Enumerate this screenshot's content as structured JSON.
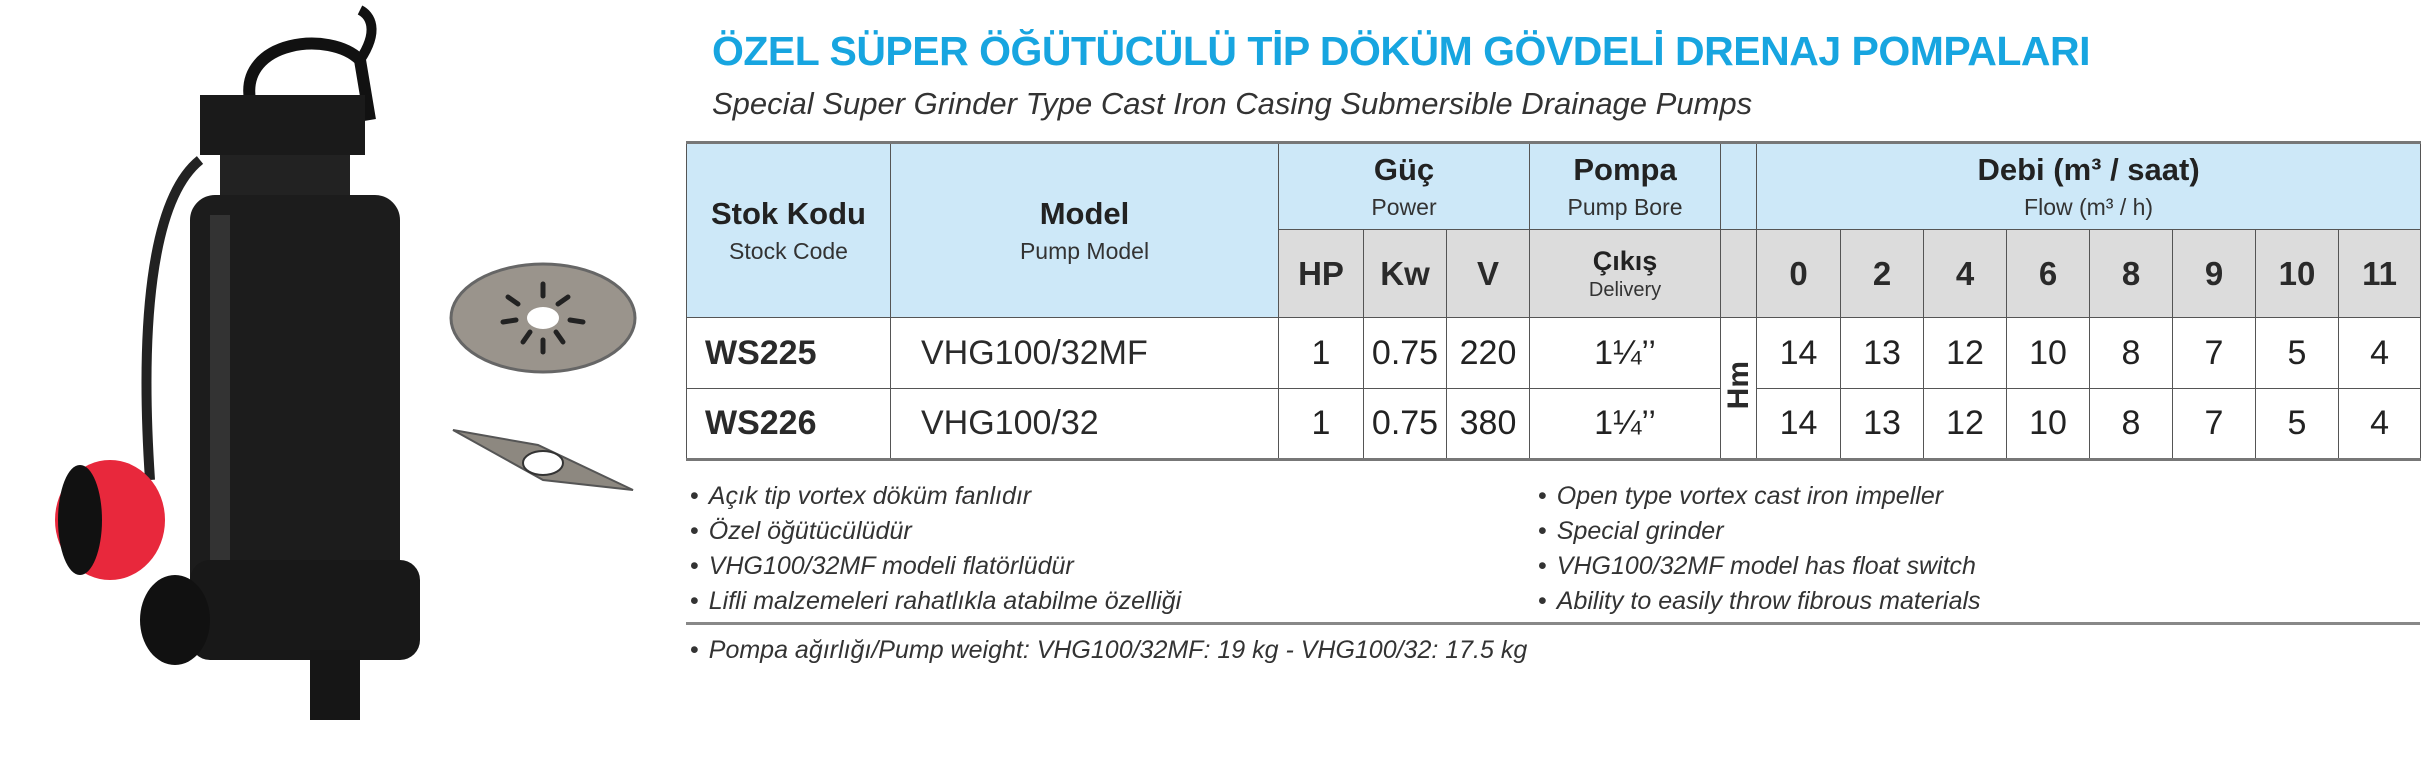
{
  "title": "ÖZEL SÜPER ÖĞÜTÜCÜLÜ TİP DÖKÜM GÖVDELİ DRENAJ POMPALARI",
  "subtitle": "Special Super Grinder Type Cast Iron Casing Submersible Drainage Pumps",
  "colors": {
    "title": "#17a5e0",
    "header_blue": "#cde8f8",
    "header_gray": "#dcdcdc",
    "float_switch": "#e8283c"
  },
  "table": {
    "headers": {
      "stock_code": "Stok Kodu",
      "stock_code_en": "Stock Code",
      "model": "Model",
      "model_en": "Pump Model",
      "power": "Güç",
      "power_en": "Power",
      "pump": "Pompa",
      "pump_en": "Pump Bore",
      "flow": "Debi (m³ / saat)",
      "flow_en": "Flow (m³ / h)",
      "hp": "HP",
      "kw": "Kw",
      "v": "V",
      "delivery": "Çıkış",
      "delivery_en": "Delivery",
      "head_label": "Hm",
      "flow_points": [
        "0",
        "2",
        "4",
        "6",
        "8",
        "9",
        "10",
        "11"
      ]
    },
    "rows": [
      {
        "code": "WS225",
        "model": "VHG100/32MF",
        "hp": "1",
        "kw": "0.75",
        "v": "220",
        "delivery": "1¼’’",
        "heads": [
          "14",
          "13",
          "12",
          "10",
          "8",
          "7",
          "5",
          "4"
        ]
      },
      {
        "code": "WS226",
        "model": "VHG100/32",
        "hp": "1",
        "kw": "0.75",
        "v": "380",
        "delivery": "1¼’’",
        "heads": [
          "14",
          "13",
          "12",
          "10",
          "8",
          "7",
          "5",
          "4"
        ]
      }
    ]
  },
  "features_tr": [
    "Açık tip vortex döküm fanlıdır",
    "Özel öğütücülüdür",
    "VHG100/32MF modeli flatörlüdür",
    "Lifli malzemeleri rahatlıkla atabilme özelliği"
  ],
  "features_en": [
    "Open type vortex cast iron impeller",
    "Special grinder",
    "VHG100/32MF model has float switch",
    "Ability to easily throw fibrous materials"
  ],
  "weight_note": "Pompa ağırlığı/Pump weight: VHG100/32MF: 19 kg - VHG100/32: 17.5 kg"
}
